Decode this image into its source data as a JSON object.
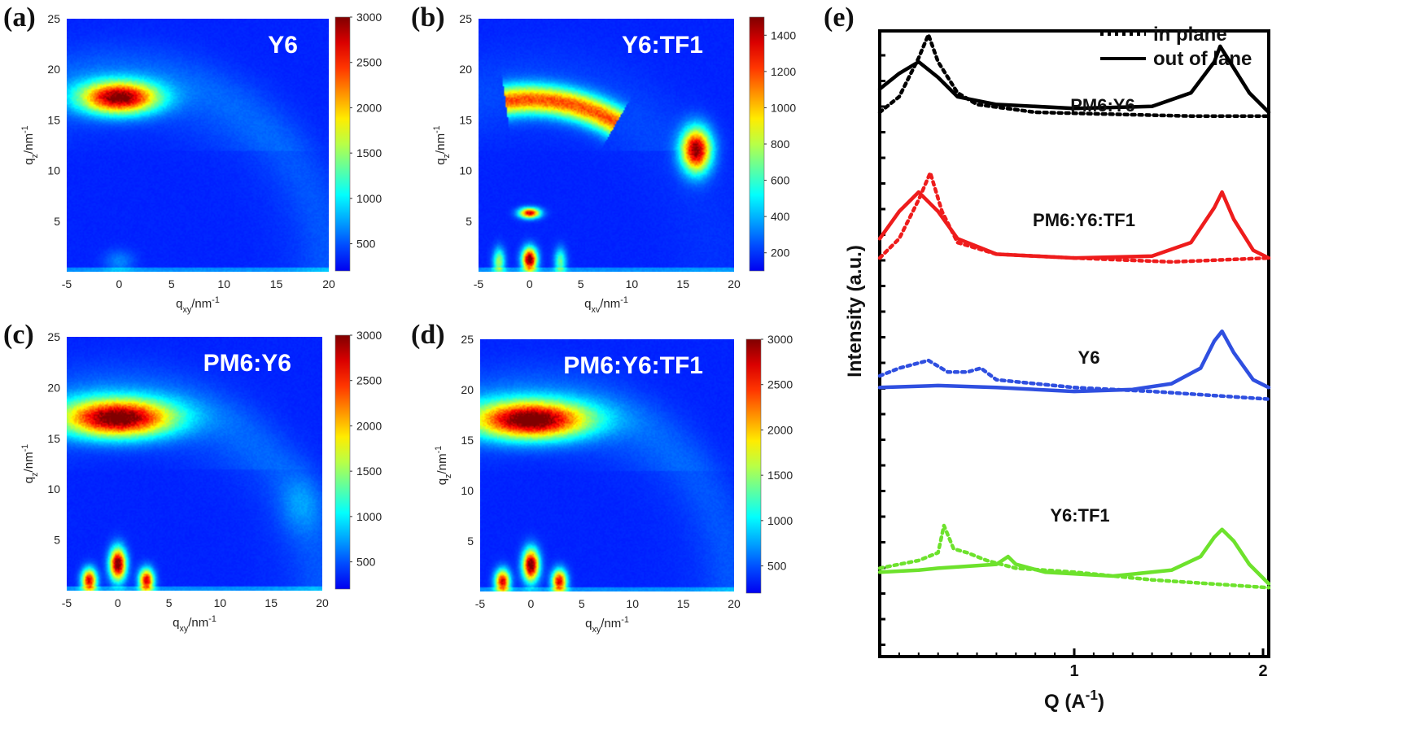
{
  "chart_data": [
    {
      "panel": "(a)",
      "type": "heatmap",
      "title": "Y6",
      "xlabel": "q_xy/nm^-1",
      "ylabel": "q_z/nm^-1",
      "xlim": [
        -5,
        20
      ],
      "ylim": [
        0,
        25
      ],
      "x_ticks": [
        -5,
        0,
        5,
        10,
        15,
        20
      ],
      "y_ticks": [
        5,
        10,
        15,
        20,
        25
      ],
      "colorbar": {
        "min": 200,
        "max": 3000,
        "ticks": [
          500,
          1000,
          1500,
          2000,
          2500,
          3000
        ]
      },
      "features": [
        {
          "qxy": 0,
          "qz": 17.2,
          "intensity": 2800,
          "sx": 2.6,
          "sz": 1.1
        },
        {
          "qxy": 0,
          "qz": 1.0,
          "intensity": 500,
          "sx": 1.0,
          "sz": 0.8
        }
      ],
      "arc": {
        "radius": 20,
        "intensity": 120
      }
    },
    {
      "panel": "(b)",
      "type": "heatmap",
      "title": "Y6:TF1",
      "xlabel": "q_xv/nm^-1",
      "ylabel": "q_z/nm^-1",
      "xlim": [
        -5,
        20
      ],
      "ylim": [
        0,
        25
      ],
      "x_ticks": [
        -5,
        0,
        5,
        10,
        15,
        20
      ],
      "y_ticks": [
        5,
        10,
        15,
        20,
        25
      ],
      "colorbar": {
        "min": 100,
        "max": 1500,
        "ticks": [
          200,
          400,
          600,
          800,
          1000,
          1200,
          1400
        ]
      },
      "features": [
        {
          "qxy": 16.3,
          "qz": 12.0,
          "intensity": 1400,
          "sx": 1.0,
          "sz": 1.5
        },
        {
          "qxy": 0,
          "qz": 5.8,
          "intensity": 1300,
          "sx": 0.7,
          "sz": 0.35
        },
        {
          "qxy": 0,
          "qz": 1.2,
          "intensity": 1500,
          "sx": 0.5,
          "sz": 0.8
        },
        {
          "qxy": -3.0,
          "qz": 1.0,
          "intensity": 700,
          "sx": 0.4,
          "sz": 0.9
        },
        {
          "qxy": 3.0,
          "qz": 1.0,
          "intensity": 600,
          "sx": 0.4,
          "sz": 0.9
        }
      ],
      "arc": {
        "radius": 17.0,
        "width": 1.4,
        "intensity": 950,
        "theta_min": 60,
        "theta_max": 98
      }
    },
    {
      "panel": "(c)",
      "type": "heatmap",
      "title": "PM6:Y6",
      "xlabel": "q_xy/nm^-1",
      "ylabel": "q_z/nm^-1",
      "xlim": [
        -5,
        20
      ],
      "ylim": [
        0,
        25
      ],
      "x_ticks": [
        -5,
        0,
        5,
        10,
        15,
        20
      ],
      "y_ticks": [
        5,
        10,
        15,
        20,
        25
      ],
      "colorbar": {
        "min": 200,
        "max": 3000,
        "ticks": [
          500,
          1000,
          1500,
          2000,
          2500,
          3000
        ]
      },
      "features": [
        {
          "qxy": 0,
          "qz": 17.0,
          "intensity": 2900,
          "sx": 3.8,
          "sz": 1.3
        },
        {
          "qxy": 0,
          "qz": 2.6,
          "intensity": 3000,
          "sx": 0.55,
          "sz": 1.1
        },
        {
          "qxy": -2.8,
          "qz": 1.0,
          "intensity": 2600,
          "sx": 0.5,
          "sz": 0.8
        },
        {
          "qxy": 2.8,
          "qz": 1.0,
          "intensity": 2600,
          "sx": 0.5,
          "sz": 0.8
        },
        {
          "qxy": 18,
          "qz": 8.5,
          "intensity": 450,
          "sx": 1.5,
          "sz": 2.0
        }
      ],
      "arc": {
        "radius": 20,
        "intensity": 120
      }
    },
    {
      "panel": "(d)",
      "type": "heatmap",
      "title": "PM6:Y6:TF1",
      "xlabel": "q_xy/nm^-1",
      "ylabel": "q_z/nm^-1",
      "xlim": [
        -5,
        20
      ],
      "ylim": [
        0,
        25
      ],
      "x_ticks": [
        -5,
        0,
        5,
        10,
        15,
        20
      ],
      "y_ticks": [
        5,
        10,
        15,
        20,
        25
      ],
      "colorbar": {
        "min": 200,
        "max": 3000,
        "ticks": [
          500,
          1000,
          1500,
          2000,
          2500,
          3000
        ]
      },
      "features": [
        {
          "qxy": 0,
          "qz": 17.0,
          "intensity": 2950,
          "sx": 4.0,
          "sz": 1.3
        },
        {
          "qxy": 0,
          "qz": 2.6,
          "intensity": 3000,
          "sx": 0.55,
          "sz": 1.1
        },
        {
          "qxy": -2.8,
          "qz": 1.0,
          "intensity": 2600,
          "sx": 0.5,
          "sz": 0.8
        },
        {
          "qxy": 2.8,
          "qz": 1.0,
          "intensity": 2600,
          "sx": 0.5,
          "sz": 0.8
        }
      ],
      "arc": {
        "radius": 20,
        "intensity": 120
      }
    },
    {
      "panel": "(e)",
      "type": "line",
      "xlabel": "Q (A^-1)",
      "ylabel": "Intensity (a.u.)",
      "xlim": [
        0,
        2
      ],
      "x_ticks": [
        1,
        2
      ],
      "legend": {
        "position": "top-right",
        "entries": [
          "in plane",
          "out of lane"
        ]
      },
      "series": [
        {
          "name": "PM6:Y6",
          "color": "#000000",
          "baseline": 0.87,
          "in_plane": [
            [
              0.0,
              0.0
            ],
            [
              0.1,
              0.04
            ],
            [
              0.2,
              0.14
            ],
            [
              0.25,
              0.2
            ],
            [
              0.3,
              0.13
            ],
            [
              0.4,
              0.05
            ],
            [
              0.5,
              0.02
            ],
            [
              0.8,
              0.0
            ],
            [
              1.2,
              -0.005
            ],
            [
              1.6,
              -0.01
            ],
            [
              2.0,
              -0.01
            ]
          ],
          "out_of_plane": [
            [
              0.0,
              0.06
            ],
            [
              0.1,
              0.1
            ],
            [
              0.2,
              0.13
            ],
            [
              0.3,
              0.09
            ],
            [
              0.4,
              0.04
            ],
            [
              0.6,
              0.02
            ],
            [
              1.0,
              0.01
            ],
            [
              1.4,
              0.015
            ],
            [
              1.6,
              0.05
            ],
            [
              1.72,
              0.13
            ],
            [
              1.75,
              0.17
            ],
            [
              1.8,
              0.13
            ],
            [
              1.9,
              0.05
            ],
            [
              2.0,
              0.0
            ]
          ]
        },
        {
          "name": "PM6:Y6:TF1",
          "color": "#ee1c1c",
          "baseline": 0.637,
          "in_plane": [
            [
              0.0,
              0.0
            ],
            [
              0.1,
              0.05
            ],
            [
              0.2,
              0.15
            ],
            [
              0.26,
              0.22
            ],
            [
              0.32,
              0.12
            ],
            [
              0.4,
              0.04
            ],
            [
              0.6,
              0.01
            ],
            [
              1.0,
              0.0
            ],
            [
              1.5,
              -0.01
            ],
            [
              2.0,
              0.0
            ]
          ],
          "out_of_plane": [
            [
              0.0,
              0.05
            ],
            [
              0.1,
              0.12
            ],
            [
              0.2,
              0.17
            ],
            [
              0.3,
              0.12
            ],
            [
              0.4,
              0.05
            ],
            [
              0.6,
              0.01
            ],
            [
              1.0,
              0.0
            ],
            [
              1.4,
              0.005
            ],
            [
              1.6,
              0.04
            ],
            [
              1.72,
              0.13
            ],
            [
              1.76,
              0.17
            ],
            [
              1.82,
              0.1
            ],
            [
              1.92,
              0.02
            ],
            [
              2.0,
              0.0
            ]
          ]
        },
        {
          "name": "Y6",
          "color": "#2f4fe0",
          "baseline": 0.43,
          "in_plane": [
            [
              0.0,
              0.03
            ],
            [
              0.1,
              0.05
            ],
            [
              0.25,
              0.07
            ],
            [
              0.35,
              0.04
            ],
            [
              0.45,
              0.04
            ],
            [
              0.52,
              0.05
            ],
            [
              0.6,
              0.02
            ],
            [
              1.0,
              0.0
            ],
            [
              1.4,
              -0.01
            ],
            [
              2.0,
              -0.03
            ]
          ],
          "out_of_plane": [
            [
              0.0,
              0.0
            ],
            [
              0.3,
              0.005
            ],
            [
              0.6,
              0.0
            ],
            [
              1.0,
              -0.01
            ],
            [
              1.3,
              -0.005
            ],
            [
              1.5,
              0.01
            ],
            [
              1.65,
              0.05
            ],
            [
              1.72,
              0.12
            ],
            [
              1.76,
              0.145
            ],
            [
              1.82,
              0.09
            ],
            [
              1.92,
              0.02
            ],
            [
              2.0,
              0.0
            ]
          ]
        },
        {
          "name": "Y6:TF1",
          "color": "#6de22c",
          "baseline": 0.135,
          "in_plane": [
            [
              0.0,
              0.01
            ],
            [
              0.1,
              0.02
            ],
            [
              0.2,
              0.03
            ],
            [
              0.3,
              0.05
            ],
            [
              0.33,
              0.12
            ],
            [
              0.38,
              0.06
            ],
            [
              0.45,
              0.05
            ],
            [
              0.55,
              0.03
            ],
            [
              0.7,
              0.01
            ],
            [
              1.0,
              0.0
            ],
            [
              1.4,
              -0.02
            ],
            [
              2.0,
              -0.04
            ]
          ],
          "out_of_plane": [
            [
              0.0,
              0.0
            ],
            [
              0.2,
              0.005
            ],
            [
              0.3,
              0.01
            ],
            [
              0.45,
              0.015
            ],
            [
              0.6,
              0.02
            ],
            [
              0.66,
              0.04
            ],
            [
              0.7,
              0.02
            ],
            [
              0.85,
              0.0
            ],
            [
              1.2,
              -0.01
            ],
            [
              1.5,
              0.005
            ],
            [
              1.65,
              0.04
            ],
            [
              1.72,
              0.09
            ],
            [
              1.76,
              0.11
            ],
            [
              1.82,
              0.08
            ],
            [
              1.9,
              0.02
            ],
            [
              2.0,
              -0.03
            ]
          ]
        }
      ]
    }
  ]
}
